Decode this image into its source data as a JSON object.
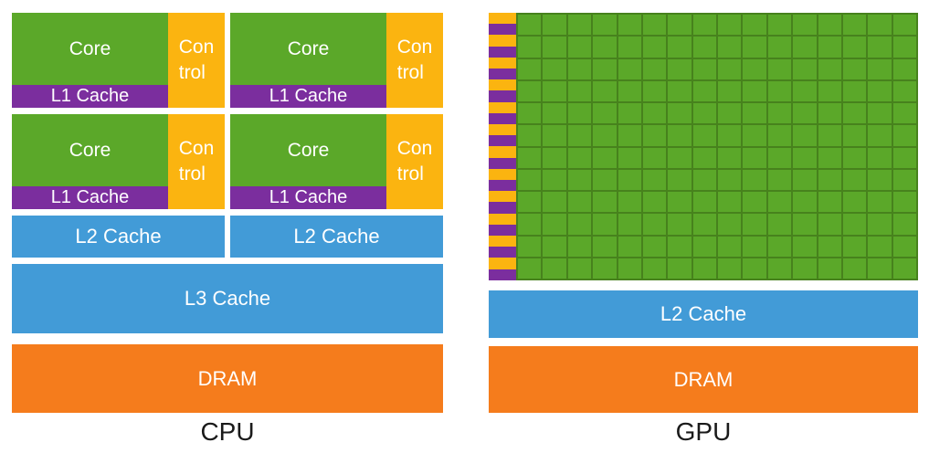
{
  "colors": {
    "core_green": "#5BA829",
    "grid_line_green": "#47821D",
    "control_gold": "#FBB410",
    "l1_purple": "#7B2E9E",
    "cache_blue": "#429BD7",
    "dram_orange": "#F57C1C",
    "label_black": "#1A1A1A",
    "text_white": "#FFFFFF"
  },
  "cpu": {
    "panel_label": "CPU",
    "cores": [
      {
        "core_label": "Core",
        "l1_label": "L1 Cache",
        "control_lines": [
          "Con",
          "trol"
        ]
      },
      {
        "core_label": "Core",
        "l1_label": "L1 Cache",
        "control_lines": [
          "Con",
          "trol"
        ]
      },
      {
        "core_label": "Core",
        "l1_label": "L1 Cache",
        "control_lines": [
          "Con",
          "trol"
        ]
      },
      {
        "core_label": "Core",
        "l1_label": "L1 Cache",
        "control_lines": [
          "Con",
          "trol"
        ]
      }
    ],
    "l2_labels": [
      "L2 Cache",
      "L2 Cache"
    ],
    "l3_label": "L3 Cache",
    "dram_label": "DRAM"
  },
  "gpu": {
    "panel_label": "GPU",
    "grid": {
      "rows": 12,
      "cols": 16,
      "left_column_pattern": [
        "control-gold-cell",
        "l1-purple-cell"
      ]
    },
    "l2_label": "L2 Cache",
    "dram_label": "DRAM"
  }
}
